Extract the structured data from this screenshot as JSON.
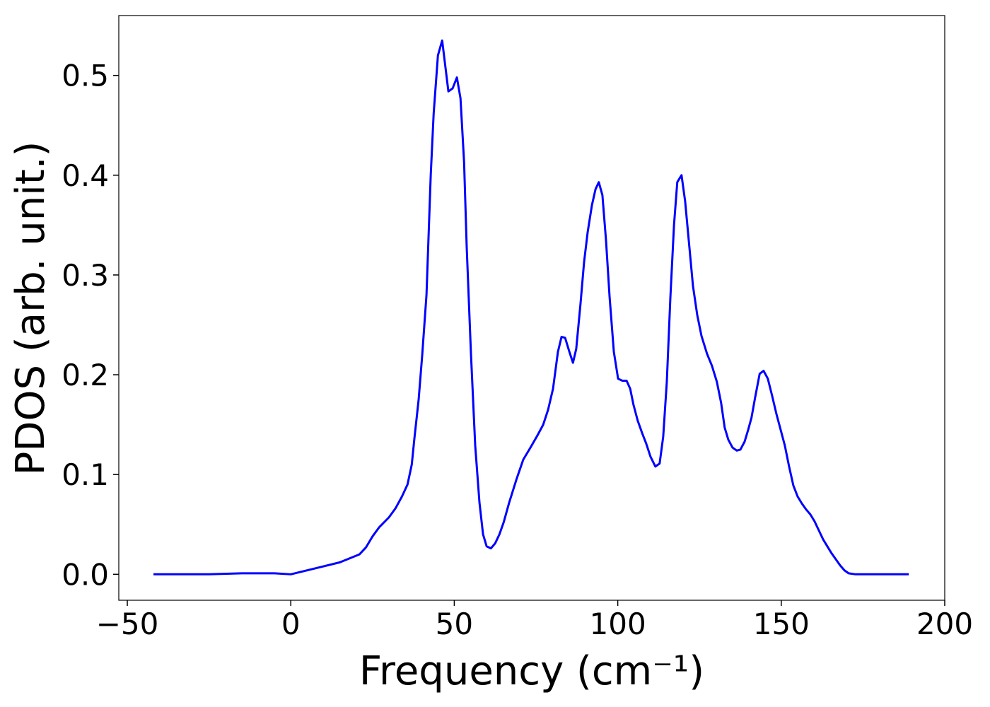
{
  "chart_data": {
    "type": "line",
    "xlabel": "Frequency (cm⁻¹)",
    "ylabel": "PDOS (arb. unit.)",
    "xlim": [
      -52.6,
      200
    ],
    "ylim": [
      -0.026,
      0.56
    ],
    "xticks": [
      {
        "value": -50,
        "label": "−50"
      },
      0,
      50,
      100,
      150,
      200
    ],
    "yticks": [
      {
        "value": 0,
        "label": "0.0"
      },
      0.1,
      0.2,
      0.3,
      0.4,
      0.5
    ],
    "grid": false,
    "series": [
      {
        "color": "#0000ff",
        "x": [
          -42,
          -25,
          -15,
          -5,
          0,
          5,
          10,
          15,
          18,
          21,
          23,
          25,
          27,
          30,
          32,
          34,
          35.7,
          37,
          37.8,
          39.1,
          40.2,
          41.5,
          42.8,
          43.7,
          45,
          46.3,
          48.2,
          49.5,
          50.8,
          51.9,
          53,
          53.8,
          55.1,
          56.4,
          57.7,
          58.8,
          59.9,
          61.2,
          62.5,
          63.8,
          65.1,
          66.8,
          69,
          71.1,
          73.3,
          75.4,
          77.2,
          78.7,
          80.2,
          81.7,
          82.8,
          83.9,
          85.2,
          86.3,
          87.3,
          88.6,
          89.7,
          90.8,
          92.1,
          93.2,
          94.2,
          95.3,
          96.4,
          97.5,
          98.8,
          100.1,
          101.4,
          102.7,
          103.8,
          104.8,
          106.1,
          107.4,
          108.7,
          110,
          111.5,
          112.8,
          113.9,
          115,
          116.1,
          117.2,
          118.2,
          119.5,
          120.6,
          121.9,
          123,
          124.3,
          125.6,
          127.3,
          128.8,
          130.3,
          131.6,
          132.7,
          133.8,
          135.1,
          136.4,
          137.5,
          138.8,
          139.9,
          140.9,
          142,
          143.4,
          144.6,
          145.9,
          147.2,
          148.5,
          149.8,
          151.1,
          152.4,
          153.7,
          155,
          156.3,
          157.6,
          158.9,
          160.2,
          161.5,
          162.8,
          164.1,
          165.4,
          166.7,
          168,
          169.3,
          170.6,
          172.7,
          189
        ],
        "values": [
          0,
          0,
          0.001,
          0.001,
          0,
          0.004,
          0.008,
          0.012,
          0.016,
          0.02,
          0.027,
          0.038,
          0.047,
          0.057,
          0.066,
          0.078,
          0.09,
          0.11,
          0.136,
          0.175,
          0.22,
          0.28,
          0.4,
          0.462,
          0.52,
          0.535,
          0.484,
          0.487,
          0.498,
          0.477,
          0.413,
          0.328,
          0.221,
          0.129,
          0.072,
          0.04,
          0.028,
          0.026,
          0.031,
          0.04,
          0.052,
          0.072,
          0.095,
          0.115,
          0.127,
          0.139,
          0.15,
          0.165,
          0.186,
          0.223,
          0.238,
          0.237,
          0.223,
          0.212,
          0.226,
          0.271,
          0.313,
          0.343,
          0.37,
          0.386,
          0.393,
          0.38,
          0.335,
          0.278,
          0.223,
          0.196,
          0.194,
          0.194,
          0.186,
          0.17,
          0.154,
          0.142,
          0.131,
          0.118,
          0.108,
          0.111,
          0.138,
          0.193,
          0.278,
          0.35,
          0.393,
          0.4,
          0.374,
          0.328,
          0.289,
          0.26,
          0.239,
          0.221,
          0.209,
          0.193,
          0.172,
          0.147,
          0.135,
          0.127,
          0.124,
          0.125,
          0.133,
          0.145,
          0.157,
          0.177,
          0.201,
          0.204,
          0.196,
          0.179,
          0.161,
          0.145,
          0.129,
          0.108,
          0.089,
          0.078,
          0.071,
          0.065,
          0.06,
          0.053,
          0.044,
          0.035,
          0.028,
          0.021,
          0.015,
          0.009,
          0.004,
          0.001,
          0,
          0
        ]
      }
    ]
  }
}
